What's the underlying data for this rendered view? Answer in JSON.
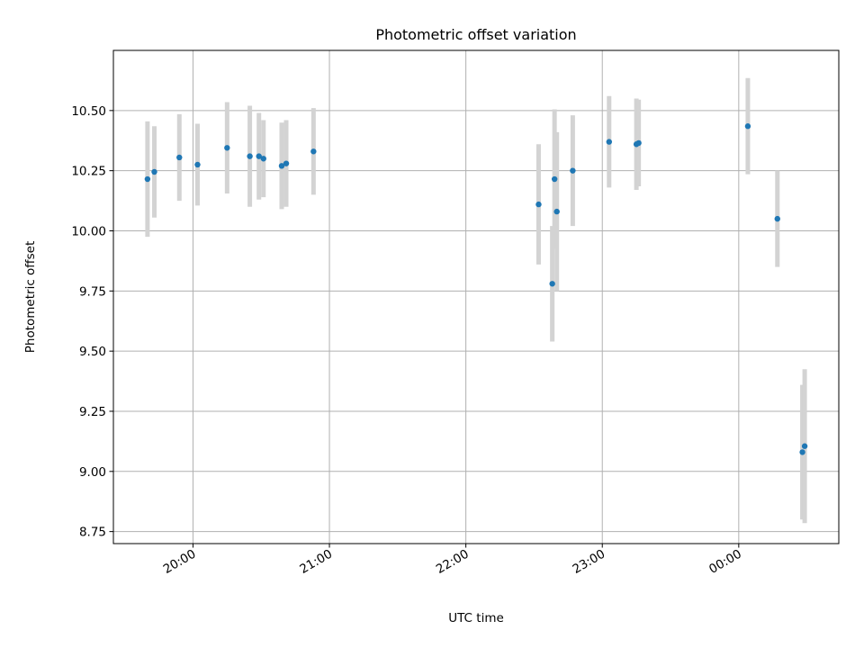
{
  "chart_data": {
    "type": "scatter",
    "title": "Photometric offset variation",
    "xlabel": "UTC time",
    "ylabel": "Photometric offset",
    "x_ticks": [
      "19:00",
      "20:00",
      "21:00",
      "22:00",
      "23:00",
      "00:00",
      "01:00"
    ],
    "x_tick_labels": [
      "",
      "20:00",
      "21:00",
      "22:00",
      "23:00",
      "00:00",
      ""
    ],
    "y_ticks": [
      8.75,
      9.0,
      9.25,
      9.5,
      9.75,
      10.0,
      10.25,
      10.5
    ],
    "y_tick_labels": [
      "8.75",
      "9.00",
      "9.25",
      "9.50",
      "9.75",
      "10.00",
      "10.25",
      "10.50"
    ],
    "xlim": [
      "19:25",
      "00:44"
    ],
    "ylim": [
      8.7,
      10.75
    ],
    "grid": true,
    "colors": {
      "points": "#1f77b4",
      "errorbars": "#d3d3d3",
      "grid": "#b0b0b0"
    },
    "series": [
      {
        "points": [
          {
            "x": "19:40",
            "y": 10.215,
            "err": 0.24
          },
          {
            "x": "19:43",
            "y": 10.245,
            "err": 0.19
          },
          {
            "x": "19:54",
            "y": 10.305,
            "err": 0.18
          },
          {
            "x": "20:02",
            "y": 10.275,
            "err": 0.17
          },
          {
            "x": "20:15",
            "y": 10.345,
            "err": 0.19
          },
          {
            "x": "20:25",
            "y": 10.31,
            "err": 0.21
          },
          {
            "x": "20:29",
            "y": 10.31,
            "err": 0.18
          },
          {
            "x": "20:31",
            "y": 10.3,
            "err": 0.16
          },
          {
            "x": "20:39",
            "y": 10.27,
            "err": 0.18
          },
          {
            "x": "20:41",
            "y": 10.28,
            "err": 0.18
          },
          {
            "x": "20:53",
            "y": 10.33,
            "err": 0.18
          },
          {
            "x": "22:32",
            "y": 10.11,
            "err": 0.25
          },
          {
            "x": "22:38",
            "y": 9.78,
            "err": 0.24
          },
          {
            "x": "22:39",
            "y": 10.215,
            "err": 0.29
          },
          {
            "x": "22:40",
            "y": 10.08,
            "err": 0.33
          },
          {
            "x": "22:47",
            "y": 10.25,
            "err": 0.23
          },
          {
            "x": "23:03",
            "y": 10.37,
            "err": 0.19
          },
          {
            "x": "23:15",
            "y": 10.36,
            "err": 0.19
          },
          {
            "x": "23:16",
            "y": 10.365,
            "err": 0.18
          },
          {
            "x": "00:04",
            "y": 10.435,
            "err": 0.2
          },
          {
            "x": "00:17",
            "y": 10.05,
            "err": 0.2
          },
          {
            "x": "00:28",
            "y": 9.08,
            "err": 0.28
          },
          {
            "x": "00:29",
            "y": 9.105,
            "err": 0.32
          }
        ]
      }
    ]
  }
}
